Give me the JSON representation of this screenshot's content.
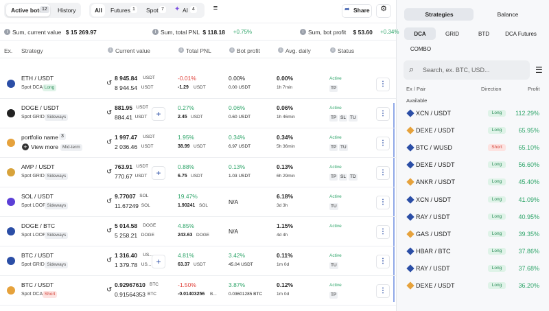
{
  "toolbar": {
    "tabs": [
      {
        "label": "Active bots",
        "count": 12
      },
      {
        "label": "History"
      }
    ],
    "filters": [
      {
        "label": "All"
      },
      {
        "label": "Futures",
        "count": 1
      },
      {
        "label": "Spot",
        "count": 7
      },
      {
        "label": "AI",
        "count": 4
      }
    ],
    "share": "Share"
  },
  "summary": [
    {
      "label": "Sum, current value",
      "value": "$ 15 269.97"
    },
    {
      "label": "Sum, total PNL",
      "value": "$ 118.18",
      "change": "+0.75%"
    },
    {
      "label": "Sum, bot profit",
      "value": "$ 53.60",
      "change": "+0.34%"
    }
  ],
  "table": {
    "columns": [
      "Ex.",
      "Strategy",
      "Current value",
      "Total PNL",
      "Bot profit",
      "Avg. daily",
      "Status"
    ],
    "rows": [
      {
        "pair": "ETH / USDT",
        "strategy": "Spot DCA",
        "tag": "Long",
        "value": "8 945.84",
        "value_unit": "USDT",
        "value2": "8 944.54",
        "value2_unit": "USDT",
        "pnl": "-0.01%",
        "pnl_amount": "-1.29",
        "pnl_unit": "USDT",
        "profit": "0.00%",
        "profit_amount": "0.00 USDT",
        "avg": "0.00%",
        "avg_time": "1h 7min",
        "status": "Active",
        "flags": [
          "TP"
        ]
      },
      {
        "pair": "DOGE / USDT",
        "strategy": "Spot GRID",
        "tag": "Sideways",
        "value": "881.95",
        "value_unit": "USDT",
        "value2": "884.41",
        "value2_unit": "USDT",
        "pnl": "0.27%",
        "pnl_amount": "2.45",
        "pnl_unit": "USDT",
        "profit": "0.06%",
        "profit_amount": "0.60 USDT",
        "avg": "0.06%",
        "avg_time": "1h 46min",
        "status": "Active",
        "flags": [
          "TP",
          "SL",
          "TU"
        ]
      },
      {
        "pair": "portfolio name",
        "count": 3,
        "more": "View more",
        "tag": "Mid-term",
        "value": "1 997.47",
        "value_unit": "USDT",
        "value2": "2 036.46",
        "value2_unit": "USDT",
        "pnl": "1.95%",
        "pnl_amount": "38.99",
        "pnl_unit": "USDT",
        "profit": "0.34%",
        "profit_amount": "6.97 USDT",
        "avg": "0.34%",
        "avg_time": "5h 36min",
        "status": "Active",
        "flags": [
          "TP",
          "TU"
        ]
      },
      {
        "pair": "AMP / USDT",
        "strategy": "Spot GRID",
        "tag": "Sideways",
        "value": "763.91",
        "value_unit": "USDT",
        "value2": "770.67",
        "value2_unit": "USDT",
        "pnl": "0.88%",
        "pnl_amount": "6.75",
        "pnl_unit": "USDT",
        "profit": "0.13%",
        "profit_amount": "1.03 USDT",
        "avg": "0.13%",
        "avg_time": "6h 29min",
        "status": "Active",
        "flags": [
          "TP",
          "SL",
          "TD"
        ]
      },
      {
        "pair": "SOL / USDT",
        "strategy": "Spot LOOP",
        "tag": "Sideways",
        "value": "9.77007",
        "value_unit": "SOL",
        "value2": "11.67249",
        "value2_unit": "SOL",
        "pnl": "19.47%",
        "pnl_amount": "1.90241",
        "pnl_unit": "SOL",
        "profit": "N/A",
        "avg": "6.18%",
        "avg_time": "3d 3h",
        "status": "Active",
        "flags": [
          "TU"
        ]
      },
      {
        "pair": "DOGE / BTC",
        "strategy": "Spot LOOP",
        "tag": "Sideways",
        "value": "5 014.58",
        "value_unit": "DOGE",
        "value2": "5 258.21",
        "value2_unit": "DOGE",
        "pnl": "4.85%",
        "pnl_amount": "243.63",
        "pnl_unit": "DOGE",
        "profit": "N/A",
        "avg": "1.15%",
        "avg_time": "4d 4h",
        "status": "Active",
        "flags": []
      },
      {
        "pair": "BTC / USDT",
        "strategy": "Spot GRID",
        "tag": "Sideways",
        "value": "1 316.40",
        "value_unit": "US...",
        "value2": "1 379.78",
        "value2_unit": "US...",
        "pnl": "4.81%",
        "pnl_amount": "63.37",
        "pnl_unit": "USDT",
        "profit": "3.42%",
        "profit_amount": "45.04 USDT",
        "avg": "0.11%",
        "avg_time": "1m 0d",
        "status": "Active",
        "flags": [
          "TU"
        ]
      },
      {
        "pair": "BTC / USDT",
        "strategy": "Spot DCA",
        "tag": "Short",
        "value": "0.92967610",
        "value_unit": "BTC",
        "value2": "0.91564353",
        "value2_unit": "BTC",
        "pnl": "-1.50%",
        "pnl_amount": "-0.01403256",
        "pnl_unit": "B...",
        "profit": "3.87%",
        "profit_amount": "0.03601285 BTC",
        "avg": "0.12%",
        "avg_time": "1m 0d",
        "status": "Active",
        "flags": [
          "TP"
        ]
      }
    ]
  },
  "sidebar": {
    "tabs": [
      "Strategies",
      "Balance"
    ],
    "subtabs": [
      "DCA",
      "GRID",
      "BTD",
      "DCA Futures",
      "COMBO"
    ],
    "search": "Search, ex. BTC, USD...",
    "columns": [
      "Ex / Pair",
      "Direction",
      "Profit"
    ],
    "section": "Available",
    "rows": [
      {
        "pair": "XCN / USDT",
        "direction": "Long",
        "profit": "112.29%"
      },
      {
        "pair": "DEXE / USDT",
        "direction": "Long",
        "profit": "65.95%"
      },
      {
        "pair": "BTC / WUSD",
        "direction": "Short",
        "profit": "65.10%"
      },
      {
        "pair": "DEXE / USDT",
        "direction": "Long",
        "profit": "56.60%"
      },
      {
        "pair": "ANKR / USDT",
        "direction": "Long",
        "profit": "45.40%"
      },
      {
        "pair": "XCN / USDT",
        "direction": "Long",
        "profit": "41.09%"
      },
      {
        "pair": "RAY / USDT",
        "direction": "Long",
        "profit": "40.95%"
      },
      {
        "pair": "GAS / USDT",
        "direction": "Long",
        "profit": "39.35%"
      },
      {
        "pair": "HBAR / BTC",
        "direction": "Long",
        "profit": "37.86%"
      },
      {
        "pair": "RAY / USDT",
        "direction": "Long",
        "profit": "37.68%"
      },
      {
        "pair": "DEXE / USDT",
        "direction": "Long",
        "profit": "36.20%"
      }
    ]
  }
}
